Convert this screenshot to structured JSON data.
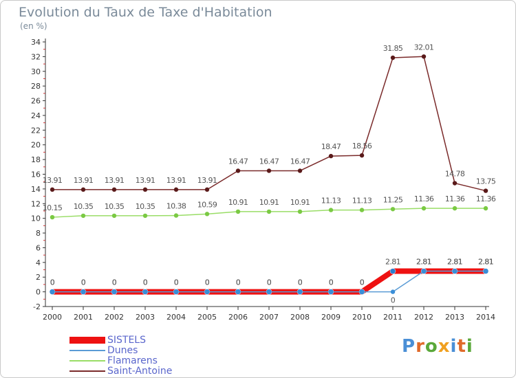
{
  "header": {
    "title": "Evolution du Taux de Taxe d'Habitation",
    "unit": "(en %)"
  },
  "logo": {
    "text": "Proxiti",
    "letter_colors": [
      "#4a8fd6",
      "#e06a2a",
      "#5aa83a",
      "#f0a020",
      "#4a8fd6",
      "#e06a2a",
      "#5aa83a"
    ]
  },
  "colors": {
    "axis": "#333333",
    "grid_ticks": "#cc3333",
    "label_text": "#555555"
  },
  "chart_data": {
    "type": "line",
    "title": "Evolution du Taux de Taxe d'Habitation",
    "ylabel": "(en %)",
    "xlabel": "",
    "x": [
      "2000",
      "2001",
      "2002",
      "2003",
      "2004",
      "2005",
      "2006",
      "2007",
      "2008",
      "2009",
      "2010",
      "2011",
      "2012",
      "2013",
      "2014"
    ],
    "ylim": [
      -2,
      34
    ],
    "yticks": [
      -2,
      0,
      2,
      4,
      6,
      8,
      10,
      12,
      14,
      16,
      18,
      20,
      22,
      24,
      26,
      28,
      30,
      32,
      34
    ],
    "grid": false,
    "legend_position": "bottom-left",
    "series": [
      {
        "name": "SISTELS",
        "color": "#ee1111",
        "marker_color": "#2a7fd0",
        "values": [
          0,
          0,
          0,
          0,
          0,
          0,
          0,
          0,
          0,
          0,
          0,
          2.81,
          2.81,
          2.81,
          2.81
        ],
        "labels": [
          "0",
          "0",
          "0",
          "0",
          "0",
          "0",
          "0",
          "0",
          "0",
          "0",
          "0",
          "2.81",
          "2.81",
          "2.81",
          "2.81"
        ]
      },
      {
        "name": "Dunes",
        "color": "#5a9bd5",
        "marker_color": "#3a8fd8",
        "values": [
          0,
          0,
          0,
          0,
          0,
          0,
          0,
          0,
          0,
          0,
          0,
          0,
          2.81,
          2.81,
          2.81
        ],
        "labels": [
          "0",
          "0",
          "0",
          "0",
          "0",
          "0",
          "0",
          "0",
          "0",
          "0",
          "0",
          "0",
          "2.81",
          "2.81",
          "2.81"
        ]
      },
      {
        "name": "Flamarens",
        "color": "#99dd66",
        "marker_color": "#7ac943",
        "values": [
          10.15,
          10.35,
          10.35,
          10.35,
          10.38,
          10.59,
          10.91,
          10.91,
          10.91,
          11.13,
          11.13,
          11.25,
          11.36,
          11.36,
          11.36
        ],
        "labels": [
          "10.15",
          "10.35",
          "10.35",
          "10.35",
          "10.38",
          "10.59",
          "10.91",
          "10.91",
          "10.91",
          "11.13",
          "11.13",
          "11.25",
          "11.36",
          "11.36",
          "11.36"
        ]
      },
      {
        "name": "Saint-Antoine",
        "color": "#7a2a2a",
        "marker_color": "#5a1a1a",
        "values": [
          13.91,
          13.91,
          13.91,
          13.91,
          13.91,
          13.91,
          16.47,
          16.47,
          16.47,
          18.47,
          18.56,
          31.85,
          32.01,
          14.78,
          13.75
        ],
        "labels": [
          "13.91",
          "13.91",
          "13.91",
          "13.91",
          "13.91",
          "13.91",
          "16.47",
          "16.47",
          "16.47",
          "18.47",
          "18.56",
          "31.85",
          "32.01",
          "14.78",
          "13.75"
        ]
      }
    ]
  }
}
